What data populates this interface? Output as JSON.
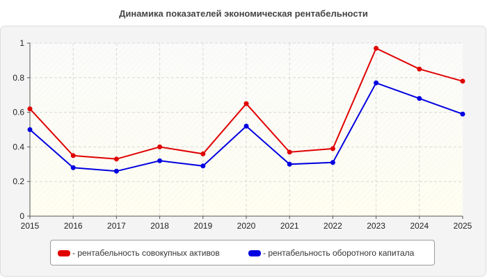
{
  "chart_data": {
    "type": "line",
    "title": "Динамика показателей экономическая рентабельности",
    "xlabel": "",
    "ylabel": "",
    "x": [
      "2015",
      "2016",
      "2017",
      "2018",
      "2019",
      "2020",
      "2021",
      "2022",
      "2023",
      "2024",
      "2025"
    ],
    "yticks": [
      "0",
      "0.2",
      "0.4",
      "0.6",
      "0.8",
      "1"
    ],
    "ylim": [
      0,
      1
    ],
    "grid": true,
    "legend_position": "bottom",
    "series": [
      {
        "name": "- рентабельность совокупных активов",
        "color": "#e00000",
        "values": [
          0.62,
          0.35,
          0.33,
          0.4,
          0.36,
          0.65,
          0.37,
          0.39,
          0.97,
          0.85,
          0.78
        ]
      },
      {
        "name": "- рентабельность оборотного капитала",
        "color": "#0000e0",
        "values": [
          0.5,
          0.28,
          0.26,
          0.32,
          0.29,
          0.52,
          0.3,
          0.31,
          0.77,
          0.68,
          0.59
        ]
      }
    ]
  }
}
